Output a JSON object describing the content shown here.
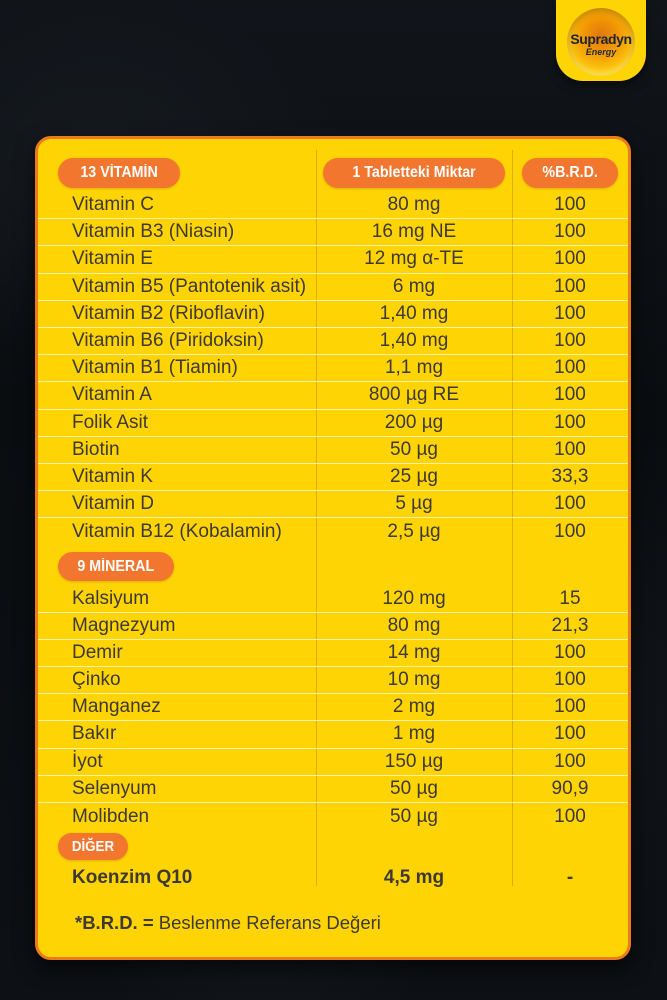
{
  "logo": {
    "brand": "Supradyn",
    "sub": "Energy"
  },
  "colors": {
    "card_yellow": "#ffd405",
    "badge_orange": "#f2762e",
    "card_border_orange": "#ee7a1e",
    "text_dark": "#3e3933",
    "badge_text": "#ffffff",
    "background_dark": "#0d1014"
  },
  "table": {
    "header": {
      "col1": "13 VİTAMİN",
      "col2": "1 Tabletteki Miktar",
      "col3": "%B.R.D."
    },
    "vitamins": [
      {
        "name": "Vitamin C",
        "amount": "80 mg",
        "brd": "100"
      },
      {
        "name": "Vitamin B3 (Niasin)",
        "amount": "16 mg NE",
        "brd": "100"
      },
      {
        "name": "Vitamin E",
        "amount": "12 mg α-TE",
        "brd": "100"
      },
      {
        "name": "Vitamin B5 (Pantotenik asit)",
        "amount": "6 mg",
        "brd": "100"
      },
      {
        "name": "Vitamin B2 (Riboflavin)",
        "amount": "1,40 mg",
        "brd": "100"
      },
      {
        "name": "Vitamin B6 (Piridoksin)",
        "amount": "1,40 mg",
        "brd": "100"
      },
      {
        "name": "Vitamin B1 (Tiamin)",
        "amount": "1,1 mg",
        "brd": "100"
      },
      {
        "name": "Vitamin A",
        "amount": "800 µg RE",
        "brd": "100"
      },
      {
        "name": "Folik Asit",
        "amount": "200 µg",
        "brd": "100"
      },
      {
        "name": "Biotin",
        "amount": "50 µg",
        "brd": "100"
      },
      {
        "name": "Vitamin K",
        "amount": "25 µg",
        "brd": "33,3"
      },
      {
        "name": "Vitamin D",
        "amount": "5 µg",
        "brd": "100"
      },
      {
        "name": "Vitamin B12 (Kobalamin)",
        "amount": "2,5 µg",
        "brd": "100"
      }
    ],
    "minerals_header": "9 MİNERAL",
    "minerals": [
      {
        "name": "Kalsiyum",
        "amount": "120 mg",
        "brd": "15"
      },
      {
        "name": "Magnezyum",
        "amount": "80 mg",
        "brd": "21,3"
      },
      {
        "name": "Demir",
        "amount": "14 mg",
        "brd": "100"
      },
      {
        "name": "Çinko",
        "amount": "10 mg",
        "brd": "100"
      },
      {
        "name": "Manganez",
        "amount": "2 mg",
        "brd": "100"
      },
      {
        "name": "Bakır",
        "amount": "1 mg",
        "brd": "100"
      },
      {
        "name": "İyot",
        "amount": "150 µg",
        "brd": "100"
      },
      {
        "name": "Selenyum",
        "amount": "50 µg",
        "brd": "90,9"
      },
      {
        "name": "Molibden",
        "amount": "50 µg",
        "brd": "100"
      }
    ],
    "other_header": "DİĞER",
    "other": [
      {
        "name": "Koenzim Q10",
        "amount": "4,5 mg",
        "brd": "-"
      }
    ],
    "footnote_bold": "*B.R.D. =",
    "footnote_rest": "Beslenme Referans Değeri"
  }
}
